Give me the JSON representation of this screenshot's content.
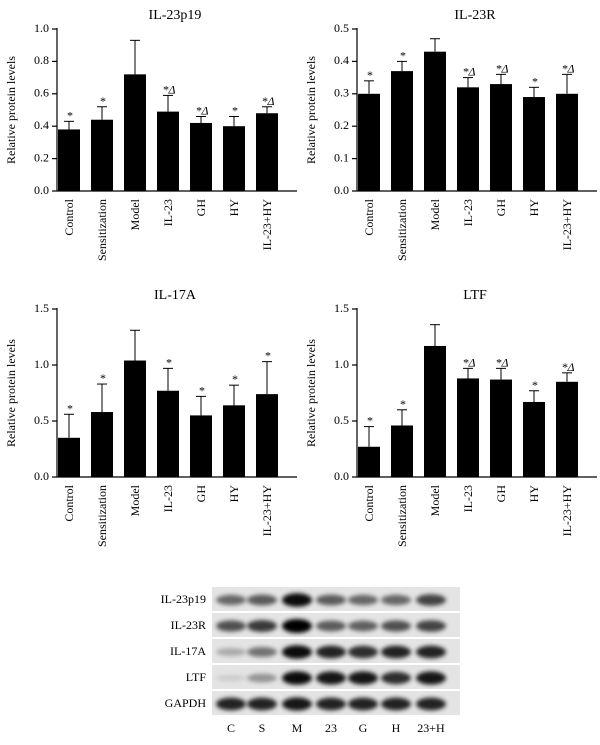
{
  "chart_data": [
    {
      "type": "bar",
      "title": "IL-23p19",
      "ylabel": "Relative protein levels",
      "categories": [
        "Control",
        "Sensitization",
        "Model",
        "IL-23",
        "GH",
        "HY",
        "IL-23+HY"
      ],
      "values": [
        0.38,
        0.44,
        0.72,
        0.49,
        0.42,
        0.4,
        0.48
      ],
      "errors": [
        0.05,
        0.08,
        0.21,
        0.1,
        0.04,
        0.06,
        0.04
      ],
      "annotations": [
        "*",
        "*",
        "",
        "*Δ",
        "*Δ",
        "*",
        "*Δ"
      ],
      "ylim": [
        0,
        1.0
      ],
      "yticks": [
        "0.0",
        "0.2",
        "0.4",
        "0.6",
        "0.8",
        "1.0"
      ]
    },
    {
      "type": "bar",
      "title": "IL-23R",
      "ylabel": "Relative protein levels",
      "categories": [
        "Control",
        "Sensitization",
        "Model",
        "IL-23",
        "GH",
        "HY",
        "IL-23+HY"
      ],
      "values": [
        0.3,
        0.37,
        0.43,
        0.32,
        0.33,
        0.29,
        0.3
      ],
      "errors": [
        0.04,
        0.03,
        0.04,
        0.03,
        0.03,
        0.03,
        0.06
      ],
      "annotations": [
        "*",
        "*",
        "",
        "*Δ",
        "*Δ",
        "*",
        "*Δ"
      ],
      "ylim": [
        0,
        0.5
      ],
      "yticks": [
        "0.0",
        "0.1",
        "0.2",
        "0.3",
        "0.4",
        "0.5"
      ]
    },
    {
      "type": "bar",
      "title": "IL-17A",
      "ylabel": "Relative protein levels",
      "categories": [
        "Control",
        "Sensitization",
        "Model",
        "IL-23",
        "GH",
        "HY",
        "IL-23+HY"
      ],
      "values": [
        0.35,
        0.58,
        1.04,
        0.77,
        0.55,
        0.64,
        0.74
      ],
      "errors": [
        0.21,
        0.25,
        0.27,
        0.2,
        0.17,
        0.18,
        0.29
      ],
      "annotations": [
        "*",
        "*",
        "",
        "*",
        "*",
        "*",
        "*"
      ],
      "ylim": [
        0,
        1.5
      ],
      "yticks": [
        "0.0",
        "0.5",
        "1.0",
        "1.5"
      ]
    },
    {
      "type": "bar",
      "title": "LTF",
      "ylabel": "Relative protein levels",
      "categories": [
        "Control",
        "Sensitization",
        "Model",
        "IL-23",
        "GH",
        "HY",
        "IL-23+HY"
      ],
      "values": [
        0.27,
        0.46,
        1.17,
        0.88,
        0.87,
        0.67,
        0.85
      ],
      "errors": [
        0.18,
        0.14,
        0.19,
        0.09,
        0.1,
        0.1,
        0.08
      ],
      "annotations": [
        "*",
        "*",
        "",
        "*Δ",
        "*Δ",
        "*",
        "*Δ"
      ],
      "ylim": [
        0,
        1.5
      ],
      "yticks": [
        "0.0",
        "0.5",
        "1.0",
        "1.5"
      ]
    }
  ],
  "western_blot": {
    "rows": [
      "IL-23p19",
      "IL-23R",
      "IL-17A",
      "LTF",
      "GAPDH"
    ],
    "lanes": [
      "C",
      "S",
      "M",
      "23",
      "G",
      "H",
      "23+H"
    ],
    "intensity": [
      [
        0.55,
        0.6,
        0.95,
        0.6,
        0.55,
        0.55,
        0.7
      ],
      [
        0.65,
        0.75,
        1.0,
        0.6,
        0.58,
        0.65,
        0.7
      ],
      [
        0.25,
        0.5,
        0.95,
        0.85,
        0.8,
        0.85,
        0.85
      ],
      [
        0.1,
        0.35,
        0.95,
        0.9,
        0.9,
        0.8,
        0.9
      ],
      [
        0.85,
        0.85,
        0.9,
        0.85,
        0.85,
        0.85,
        0.85
      ]
    ]
  }
}
